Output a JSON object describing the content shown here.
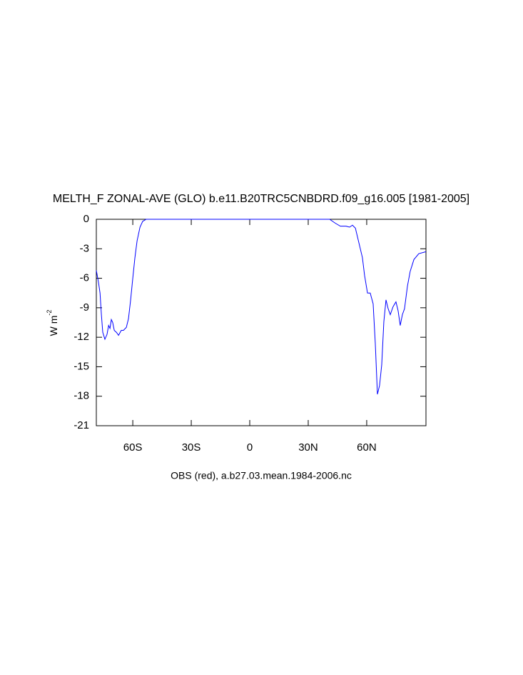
{
  "chart_data": {
    "type": "line",
    "title": "MELTH_F ZONAL-AVE (GLO) b.e11.B20TRC5CNBDRD.f09_g16.005 [1981-2005]",
    "subtitle": "OBS (red), a.b27.03.mean.1984-2006.nc",
    "ylabel": "W m",
    "ylabel_superscript": "-2",
    "xlim": [
      -78.7,
      90.4
    ],
    "ylim": [
      -21,
      0
    ],
    "xticks": [
      {
        "value": -60,
        "label": "60S"
      },
      {
        "value": -30,
        "label": "30S"
      },
      {
        "value": 0,
        "label": "0"
      },
      {
        "value": 30,
        "label": "30N"
      },
      {
        "value": 60,
        "label": "60N"
      }
    ],
    "yticks": [
      0,
      -3,
      -6,
      -9,
      -12,
      -15,
      -18,
      -21
    ],
    "series": [
      {
        "color": "#0000ff",
        "x": [
          -78.7,
          -77.6,
          -76.8,
          -76.1,
          -75.4,
          -74.3,
          -73.2,
          -72.4,
          -71.7,
          -71.0,
          -70.3,
          -69.5,
          -68.4,
          -67.3,
          -65.9,
          -64.8,
          -63.3,
          -62.2,
          -61.1,
          -60.0,
          -58.9,
          -57.8,
          -56.3,
          -54.9,
          -53.1,
          41.0,
          43.9,
          46.5,
          49.4,
          51.2,
          52.7,
          54.2,
          56.0,
          57.8,
          58.9,
          60.4,
          61.8,
          63.3,
          64.4,
          65.5,
          66.6,
          67.7,
          68.8,
          69.9,
          71.0,
          72.1,
          73.5,
          75.0,
          76.1,
          77.2,
          78.3,
          79.4,
          80.9,
          82.3,
          84.2,
          86.7,
          90.4
        ],
        "values": [
          -5.2,
          -6.4,
          -7.5,
          -9.7,
          -11.5,
          -12.2,
          -11.7,
          -10.8,
          -11.1,
          -10.2,
          -10.5,
          -11.3,
          -11.5,
          -11.8,
          -11.3,
          -11.3,
          -11.0,
          -10.1,
          -8.2,
          -6.0,
          -3.9,
          -2.2,
          -0.8,
          -0.2,
          0,
          0,
          -0.4,
          -0.7,
          -0.7,
          -0.8,
          -0.6,
          -0.9,
          -2.4,
          -3.9,
          -5.7,
          -7.5,
          -7.5,
          -8.6,
          -12.6,
          -17.8,
          -16.9,
          -14.8,
          -10.4,
          -8.2,
          -9.1,
          -9.7,
          -8.9,
          -8.4,
          -9.3,
          -10.8,
          -9.7,
          -9.1,
          -6.8,
          -5.3,
          -4.1,
          -3.5,
          -3.3
        ]
      }
    ]
  }
}
